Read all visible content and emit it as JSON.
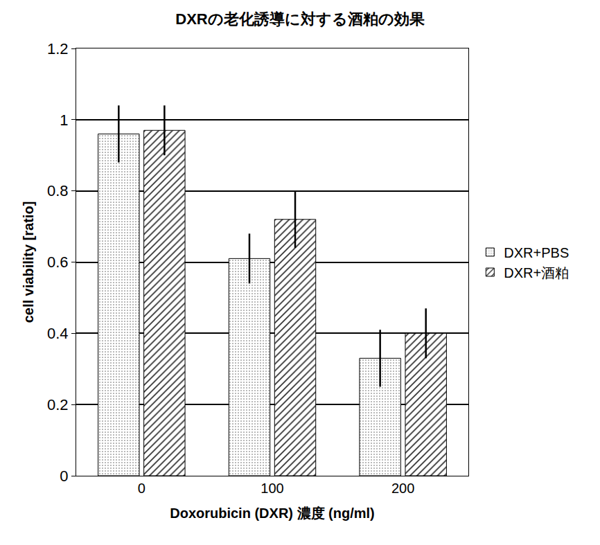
{
  "chart_data": {
    "type": "bar",
    "title": "DXRの老化誘導に対する酒粕の効果",
    "x_label": "Doxorubicin (DXR) 濃度 (ng/ml)",
    "y_label": "cell viability [ratio]",
    "categories": [
      "0",
      "100",
      "200"
    ],
    "series": [
      {
        "name": "DXR+PBS",
        "color": "#e6e6e6",
        "values": [
          0.96,
          0.61,
          0.33
        ],
        "errors": [
          0.08,
          0.07,
          0.08
        ]
      },
      {
        "name": "DXR+酒粕",
        "color": "#d9d9d9",
        "values": [
          0.97,
          0.72,
          0.4
        ],
        "errors": [
          0.07,
          0.08,
          0.07
        ]
      }
    ],
    "ylim": [
      0,
      1.2
    ],
    "yticks": [
      0,
      0.2,
      0.4,
      0.6,
      0.8,
      1,
      1.2
    ],
    "grid": true,
    "legend": "right"
  }
}
